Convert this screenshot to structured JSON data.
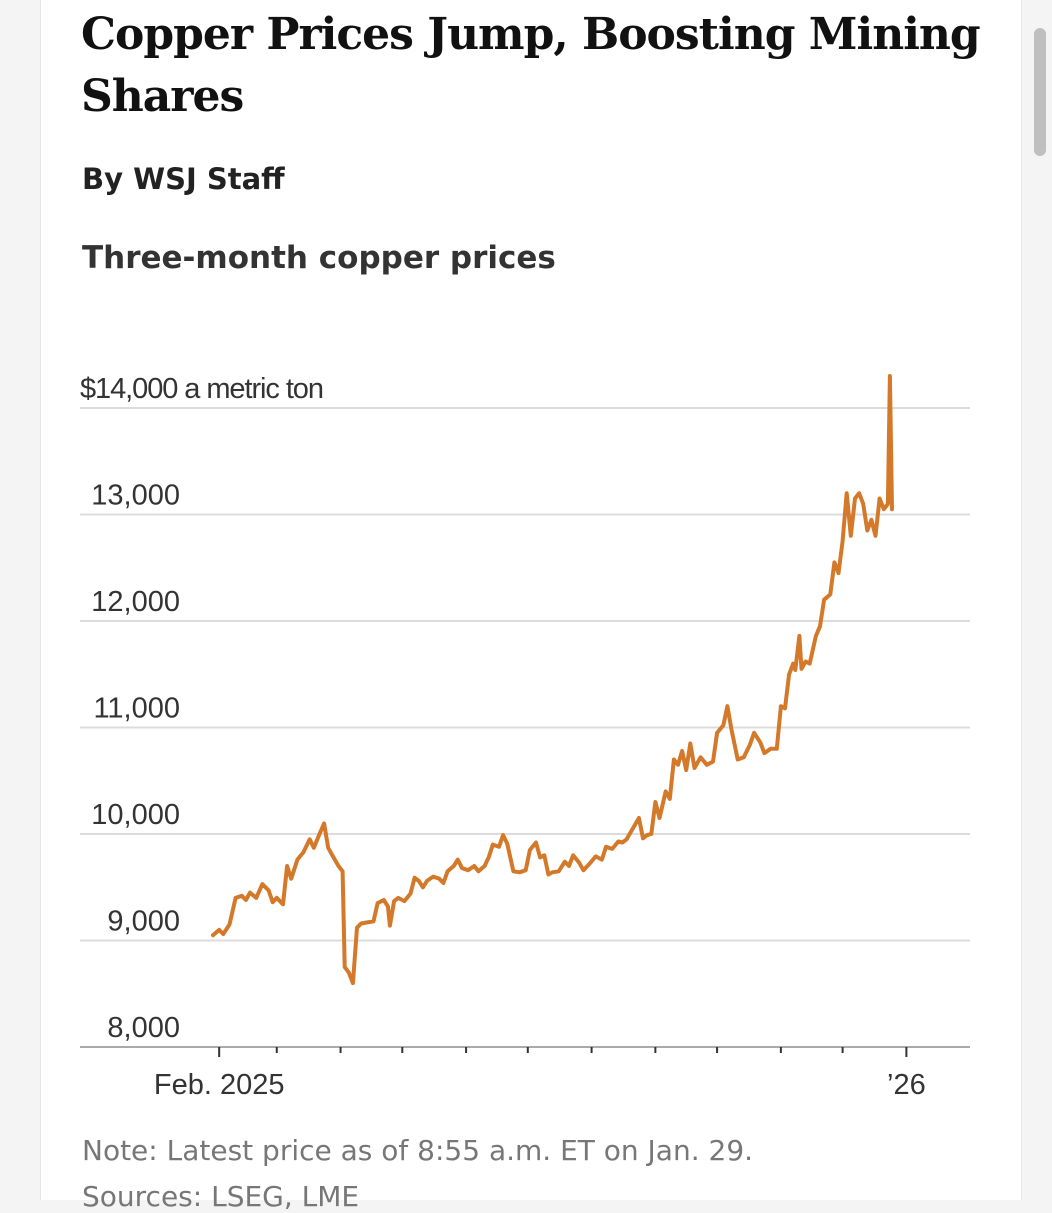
{
  "article": {
    "headline": "Copper Prices Jump, Boosting Mining Shares",
    "byline": "By WSJ Staff"
  },
  "chart_data": {
    "type": "line",
    "title": "Three-month copper prices",
    "ylabel": "a metric ton",
    "ylim": [
      8000,
      14000
    ],
    "yticks": [
      {
        "value": 14000,
        "label": "$14,000 a metric ton"
      },
      {
        "value": 13000,
        "label": "13,000"
      },
      {
        "value": 12000,
        "label": "12,000"
      },
      {
        "value": 11000,
        "label": "11,000"
      },
      {
        "value": 10000,
        "label": "10,000"
      },
      {
        "value": 9000,
        "label": "9,000"
      },
      {
        "value": 8000,
        "label": "8,000"
      }
    ],
    "xlim": [
      "2025-01-29",
      "2026-01-29"
    ],
    "xticks": [
      {
        "date": "2025-02-01",
        "label": "Feb. 2025"
      },
      {
        "date": "2025-03-01",
        "label": ""
      },
      {
        "date": "2025-04-01",
        "label": ""
      },
      {
        "date": "2025-05-01",
        "label": ""
      },
      {
        "date": "2025-06-01",
        "label": ""
      },
      {
        "date": "2025-07-01",
        "label": ""
      },
      {
        "date": "2025-08-01",
        "label": ""
      },
      {
        "date": "2025-09-01",
        "label": ""
      },
      {
        "date": "2025-10-01",
        "label": ""
      },
      {
        "date": "2025-11-01",
        "label": ""
      },
      {
        "date": "2025-12-01",
        "label": ""
      },
      {
        "date": "2026-01-01",
        "label": "’26"
      }
    ],
    "grid": true,
    "line_color": "#d4782a",
    "series": [
      {
        "points": [
          [
            "2025-01-29",
            9050
          ],
          [
            "2025-02-01",
            9100
          ],
          [
            "2025-02-03",
            9060
          ],
          [
            "2025-02-06",
            9150
          ],
          [
            "2025-02-09",
            9400
          ],
          [
            "2025-02-12",
            9420
          ],
          [
            "2025-02-14",
            9380
          ],
          [
            "2025-02-16",
            9450
          ],
          [
            "2025-02-19",
            9400
          ],
          [
            "2025-02-22",
            9530
          ],
          [
            "2025-02-25",
            9470
          ],
          [
            "2025-02-27",
            9360
          ],
          [
            "2025-03-01",
            9400
          ],
          [
            "2025-03-04",
            9340
          ],
          [
            "2025-03-06",
            9700
          ],
          [
            "2025-03-08",
            9580
          ],
          [
            "2025-03-11",
            9760
          ],
          [
            "2025-03-14",
            9830
          ],
          [
            "2025-03-17",
            9950
          ],
          [
            "2025-03-19",
            9870
          ],
          [
            "2025-03-22",
            10010
          ],
          [
            "2025-03-24",
            10100
          ],
          [
            "2025-03-26",
            9870
          ],
          [
            "2025-03-28",
            9800
          ],
          [
            "2025-03-31",
            9700
          ],
          [
            "2025-04-02",
            9650
          ],
          [
            "2025-04-03",
            8750
          ],
          [
            "2025-04-05",
            8700
          ],
          [
            "2025-04-07",
            8600
          ],
          [
            "2025-04-09",
            9120
          ],
          [
            "2025-04-11",
            9160
          ],
          [
            "2025-04-14",
            9170
          ],
          [
            "2025-04-17",
            9180
          ],
          [
            "2025-04-19",
            9350
          ],
          [
            "2025-04-22",
            9380
          ],
          [
            "2025-04-24",
            9320
          ],
          [
            "2025-04-25",
            9140
          ],
          [
            "2025-04-27",
            9370
          ],
          [
            "2025-04-29",
            9400
          ],
          [
            "2025-05-02",
            9370
          ],
          [
            "2025-05-05",
            9440
          ],
          [
            "2025-05-07",
            9590
          ],
          [
            "2025-05-09",
            9560
          ],
          [
            "2025-05-11",
            9500
          ],
          [
            "2025-05-13",
            9560
          ],
          [
            "2025-05-16",
            9600
          ],
          [
            "2025-05-19",
            9580
          ],
          [
            "2025-05-21",
            9540
          ],
          [
            "2025-05-23",
            9650
          ],
          [
            "2025-05-26",
            9700
          ],
          [
            "2025-05-28",
            9760
          ],
          [
            "2025-05-30",
            9680
          ],
          [
            "2025-06-02",
            9660
          ],
          [
            "2025-06-05",
            9700
          ],
          [
            "2025-06-07",
            9650
          ],
          [
            "2025-06-10",
            9700
          ],
          [
            "2025-06-12",
            9780
          ],
          [
            "2025-06-14",
            9900
          ],
          [
            "2025-06-17",
            9880
          ],
          [
            "2025-06-19",
            9990
          ],
          [
            "2025-06-21",
            9910
          ],
          [
            "2025-06-24",
            9650
          ],
          [
            "2025-06-27",
            9640
          ],
          [
            "2025-06-30",
            9660
          ],
          [
            "2025-07-02",
            9850
          ],
          [
            "2025-07-05",
            9920
          ],
          [
            "2025-07-07",
            9780
          ],
          [
            "2025-07-09",
            9800
          ],
          [
            "2025-07-11",
            9620
          ],
          [
            "2025-07-13",
            9640
          ],
          [
            "2025-07-16",
            9650
          ],
          [
            "2025-07-19",
            9740
          ],
          [
            "2025-07-21",
            9700
          ],
          [
            "2025-07-23",
            9800
          ],
          [
            "2025-07-26",
            9730
          ],
          [
            "2025-07-28",
            9660
          ],
          [
            "2025-07-31",
            9720
          ],
          [
            "2025-08-03",
            9790
          ],
          [
            "2025-08-06",
            9760
          ],
          [
            "2025-08-08",
            9880
          ],
          [
            "2025-08-11",
            9860
          ],
          [
            "2025-08-14",
            9930
          ],
          [
            "2025-08-16",
            9920
          ],
          [
            "2025-08-18",
            9950
          ],
          [
            "2025-08-21",
            10050
          ],
          [
            "2025-08-24",
            10150
          ],
          [
            "2025-08-26",
            9960
          ],
          [
            "2025-08-28",
            9990
          ],
          [
            "2025-08-30",
            10000
          ],
          [
            "2025-09-01",
            10300
          ],
          [
            "2025-09-03",
            10150
          ],
          [
            "2025-09-06",
            10400
          ],
          [
            "2025-09-08",
            10330
          ],
          [
            "2025-09-10",
            10700
          ],
          [
            "2025-09-12",
            10650
          ],
          [
            "2025-09-14",
            10780
          ],
          [
            "2025-09-16",
            10600
          ],
          [
            "2025-09-18",
            10850
          ],
          [
            "2025-09-20",
            10620
          ],
          [
            "2025-09-23",
            10720
          ],
          [
            "2025-09-26",
            10650
          ],
          [
            "2025-09-29",
            10680
          ],
          [
            "2025-10-01",
            10950
          ],
          [
            "2025-10-04",
            11020
          ],
          [
            "2025-10-06",
            11200
          ],
          [
            "2025-10-08",
            10980
          ],
          [
            "2025-10-11",
            10700
          ],
          [
            "2025-10-14",
            10720
          ],
          [
            "2025-10-17",
            10840
          ],
          [
            "2025-10-19",
            10950
          ],
          [
            "2025-10-22",
            10860
          ],
          [
            "2025-10-24",
            10760
          ],
          [
            "2025-10-27",
            10800
          ],
          [
            "2025-10-30",
            10800
          ],
          [
            "2025-11-01",
            11200
          ],
          [
            "2025-11-03",
            11180
          ],
          [
            "2025-11-05",
            11500
          ],
          [
            "2025-11-07",
            11600
          ],
          [
            "2025-11-08",
            11540
          ],
          [
            "2025-11-10",
            11860
          ],
          [
            "2025-11-11",
            11550
          ],
          [
            "2025-11-13",
            11620
          ],
          [
            "2025-11-15",
            11600
          ],
          [
            "2025-11-18",
            11860
          ],
          [
            "2025-11-20",
            11950
          ],
          [
            "2025-11-22",
            12200
          ],
          [
            "2025-11-25",
            12250
          ],
          [
            "2025-11-27",
            12550
          ],
          [
            "2025-11-29",
            12450
          ],
          [
            "2025-12-01",
            12750
          ],
          [
            "2025-12-03",
            13200
          ],
          [
            "2025-12-05",
            12800
          ],
          [
            "2025-12-07",
            13150
          ],
          [
            "2025-12-09",
            13200
          ],
          [
            "2025-12-11",
            13100
          ],
          [
            "2025-12-13",
            12850
          ],
          [
            "2025-12-15",
            12950
          ],
          [
            "2025-12-17",
            12800
          ],
          [
            "2025-12-19",
            13150
          ],
          [
            "2025-12-21",
            13050
          ],
          [
            "2025-12-23",
            13100
          ],
          [
            "2025-12-24",
            14300
          ],
          [
            "2025-12-25",
            13050
          ]
        ]
      }
    ],
    "note": "Note: Latest price as of 8:55 a.m. ET on Jan. 29.",
    "sources": "Sources: LSEG, LME"
  }
}
